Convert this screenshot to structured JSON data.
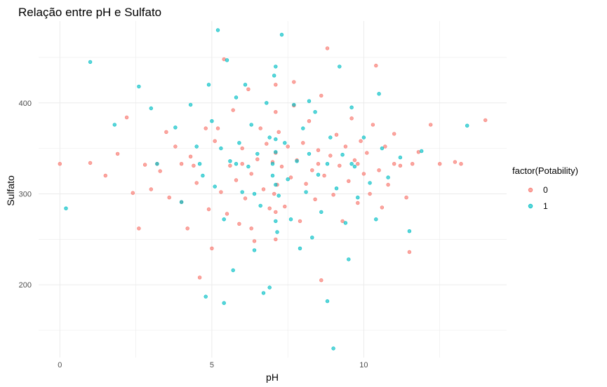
{
  "chart_data": {
    "type": "scatter",
    "title": "Relação entre pH e Sulfato",
    "xlabel": "pH",
    "ylabel": "Sulfato",
    "xlim": [
      -0.7,
      14.7
    ],
    "ylim": [
      120,
      490
    ],
    "x_ticks": [
      0,
      5,
      10
    ],
    "y_ticks": [
      200,
      300,
      400
    ],
    "grid": true,
    "legend_position": "right",
    "legend_title": "factor(Potability)",
    "colors": {
      "0": "#F8766D",
      "1": "#00BFC4"
    },
    "series": [
      {
        "name": "0",
        "points": [
          [
            0.0,
            333
          ],
          [
            1.0,
            334
          ],
          [
            1.5,
            320
          ],
          [
            1.9,
            344
          ],
          [
            2.2,
            384
          ],
          [
            2.4,
            301
          ],
          [
            2.6,
            262
          ],
          [
            2.8,
            332
          ],
          [
            3.0,
            305
          ],
          [
            3.3,
            325
          ],
          [
            3.5,
            368
          ],
          [
            3.6,
            296
          ],
          [
            3.8,
            352
          ],
          [
            4.0,
            291
          ],
          [
            4.2,
            262
          ],
          [
            4.3,
            341
          ],
          [
            4.5,
            312
          ],
          [
            4.6,
            208
          ],
          [
            4.8,
            372
          ],
          [
            4.9,
            283
          ],
          [
            5.0,
            240
          ],
          [
            5.1,
            358
          ],
          [
            5.3,
            302
          ],
          [
            5.4,
            448
          ],
          [
            5.5,
            278
          ],
          [
            5.6,
            331
          ],
          [
            5.7,
            392
          ],
          [
            5.8,
            315
          ],
          [
            5.9,
            267
          ],
          [
            6.0,
            350
          ],
          [
            6.1,
            295
          ],
          [
            6.2,
            415
          ],
          [
            6.3,
            322
          ],
          [
            6.4,
            248
          ],
          [
            6.5,
            338
          ],
          [
            6.6,
            372
          ],
          [
            6.7,
            305
          ],
          [
            6.8,
            355
          ],
          [
            6.9,
            284
          ],
          [
            7.0,
            335
          ],
          [
            7.05,
            300
          ],
          [
            7.1,
            345
          ],
          [
            7.15,
            310
          ],
          [
            7.2,
            368
          ],
          [
            7.3,
            330
          ],
          [
            7.4,
            286
          ],
          [
            7.5,
            352
          ],
          [
            7.6,
            318
          ],
          [
            7.7,
            397
          ],
          [
            7.8,
            337
          ],
          [
            7.9,
            270
          ],
          [
            8.0,
            356
          ],
          [
            8.1,
            311
          ],
          [
            8.2,
            380
          ],
          [
            8.3,
            326
          ],
          [
            8.4,
            294
          ],
          [
            8.5,
            348
          ],
          [
            8.6,
            408
          ],
          [
            8.7,
            320
          ],
          [
            8.8,
            460
          ],
          [
            8.9,
            342
          ],
          [
            9.0,
            299
          ],
          [
            9.1,
            365
          ],
          [
            9.2,
            331
          ],
          [
            9.3,
            270
          ],
          [
            9.4,
            352
          ],
          [
            9.5,
            314
          ],
          [
            9.6,
            383
          ],
          [
            9.7,
            337
          ],
          [
            9.8,
            290
          ],
          [
            9.9,
            358
          ],
          [
            10.0,
            322
          ],
          [
            10.1,
            345
          ],
          [
            10.2,
            300
          ],
          [
            10.3,
            376
          ],
          [
            10.4,
            441
          ],
          [
            10.5,
            326
          ],
          [
            10.6,
            285
          ],
          [
            10.7,
            352
          ],
          [
            10.8,
            310
          ],
          [
            11.0,
            366
          ],
          [
            11.2,
            331
          ],
          [
            11.4,
            296
          ],
          [
            11.5,
            236
          ],
          [
            11.6,
            333
          ],
          [
            11.8,
            346
          ],
          [
            12.2,
            376
          ],
          [
            12.5,
            333
          ],
          [
            13.0,
            335
          ],
          [
            13.2,
            333
          ],
          [
            14.0,
            381
          ],
          [
            8.6,
            205
          ],
          [
            6.3,
            262
          ],
          [
            7.7,
            423
          ],
          [
            5.2,
            372
          ],
          [
            4.4,
            331
          ],
          [
            3.2,
            333
          ],
          [
            6.0,
            333
          ],
          [
            8.5,
            333
          ],
          [
            9.8,
            333
          ],
          [
            11.0,
            333
          ],
          [
            4.0,
            333
          ],
          [
            7.1,
            250
          ],
          [
            7.1,
            420
          ],
          [
            7.1,
            280
          ],
          [
            7.1,
            390
          ]
        ]
      },
      {
        "name": "1",
        "points": [
          [
            0.2,
            284
          ],
          [
            1.0,
            445
          ],
          [
            1.8,
            376
          ],
          [
            2.6,
            418
          ],
          [
            3.0,
            394
          ],
          [
            3.2,
            333
          ],
          [
            3.8,
            373
          ],
          [
            4.0,
            291
          ],
          [
            4.3,
            398
          ],
          [
            4.5,
            352
          ],
          [
            4.7,
            320
          ],
          [
            4.8,
            187
          ],
          [
            4.9,
            420
          ],
          [
            5.0,
            380
          ],
          [
            5.1,
            308
          ],
          [
            5.2,
            480
          ],
          [
            5.3,
            350
          ],
          [
            5.4,
            272
          ],
          [
            5.5,
            447
          ],
          [
            5.6,
            336
          ],
          [
            5.7,
            216
          ],
          [
            5.8,
            406
          ],
          [
            5.9,
            356
          ],
          [
            6.0,
            302
          ],
          [
            6.1,
            420
          ],
          [
            6.2,
            330
          ],
          [
            6.3,
            376
          ],
          [
            6.4,
            238
          ],
          [
            6.5,
            344
          ],
          [
            6.6,
            287
          ],
          [
            6.7,
            191
          ],
          [
            6.8,
            400
          ],
          [
            6.9,
            362
          ],
          [
            7.0,
            320
          ],
          [
            7.05,
            430
          ],
          [
            7.1,
            346
          ],
          [
            7.15,
            258
          ],
          [
            7.2,
            298
          ],
          [
            7.3,
            475
          ],
          [
            7.4,
            356
          ],
          [
            7.5,
            316
          ],
          [
            7.6,
            272
          ],
          [
            7.7,
            398
          ],
          [
            7.8,
            336
          ],
          [
            7.9,
            240
          ],
          [
            8.0,
            372
          ],
          [
            8.1,
            302
          ],
          [
            8.2,
            344
          ],
          [
            8.3,
            252
          ],
          [
            8.4,
            390
          ],
          [
            8.5,
            321
          ],
          [
            8.6,
            280
          ],
          [
            8.8,
            182
          ],
          [
            8.9,
            362
          ],
          [
            9.0,
            130
          ],
          [
            9.1,
            306
          ],
          [
            9.2,
            440
          ],
          [
            9.3,
            343
          ],
          [
            9.4,
            268
          ],
          [
            9.5,
            228
          ],
          [
            9.6,
            395
          ],
          [
            9.7,
            330
          ],
          [
            9.8,
            296
          ],
          [
            10.0,
            362
          ],
          [
            10.2,
            312
          ],
          [
            10.4,
            272
          ],
          [
            10.5,
            410
          ],
          [
            10.6,
            350
          ],
          [
            10.8,
            318
          ],
          [
            11.2,
            340
          ],
          [
            11.5,
            259
          ],
          [
            11.9,
            347
          ],
          [
            13.4,
            375
          ],
          [
            5.4,
            180
          ],
          [
            6.9,
            197
          ],
          [
            8.2,
            402
          ],
          [
            6.4,
            300
          ],
          [
            7.0,
            333
          ],
          [
            7.1,
            310
          ],
          [
            7.1,
            360
          ],
          [
            7.1,
            270
          ],
          [
            7.1,
            440
          ],
          [
            5.8,
            333
          ],
          [
            8.8,
            333
          ],
          [
            4.6,
            333
          ],
          [
            9.6,
            333
          ]
        ]
      }
    ]
  }
}
